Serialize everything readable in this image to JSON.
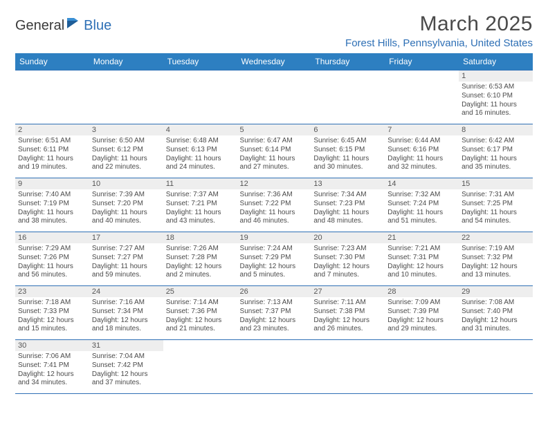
{
  "logo": {
    "text1": "General",
    "text2": "Blue"
  },
  "header": {
    "month_title": "March 2025",
    "location": "Forest Hills, Pennsylvania, United States"
  },
  "colors": {
    "header_bg": "#2d7fc1",
    "accent": "#2d6fb5",
    "day_strip_bg": "#eeeeee",
    "text": "#4a4a4a"
  },
  "weekdays": [
    "Sunday",
    "Monday",
    "Tuesday",
    "Wednesday",
    "Thursday",
    "Friday",
    "Saturday"
  ],
  "weeks": [
    [
      null,
      null,
      null,
      null,
      null,
      null,
      {
        "n": "1",
        "sr": "Sunrise: 6:53 AM",
        "ss": "Sunset: 6:10 PM",
        "dl": "Daylight: 11 hours and 16 minutes."
      }
    ],
    [
      {
        "n": "2",
        "sr": "Sunrise: 6:51 AM",
        "ss": "Sunset: 6:11 PM",
        "dl": "Daylight: 11 hours and 19 minutes."
      },
      {
        "n": "3",
        "sr": "Sunrise: 6:50 AM",
        "ss": "Sunset: 6:12 PM",
        "dl": "Daylight: 11 hours and 22 minutes."
      },
      {
        "n": "4",
        "sr": "Sunrise: 6:48 AM",
        "ss": "Sunset: 6:13 PM",
        "dl": "Daylight: 11 hours and 24 minutes."
      },
      {
        "n": "5",
        "sr": "Sunrise: 6:47 AM",
        "ss": "Sunset: 6:14 PM",
        "dl": "Daylight: 11 hours and 27 minutes."
      },
      {
        "n": "6",
        "sr": "Sunrise: 6:45 AM",
        "ss": "Sunset: 6:15 PM",
        "dl": "Daylight: 11 hours and 30 minutes."
      },
      {
        "n": "7",
        "sr": "Sunrise: 6:44 AM",
        "ss": "Sunset: 6:16 PM",
        "dl": "Daylight: 11 hours and 32 minutes."
      },
      {
        "n": "8",
        "sr": "Sunrise: 6:42 AM",
        "ss": "Sunset: 6:17 PM",
        "dl": "Daylight: 11 hours and 35 minutes."
      }
    ],
    [
      {
        "n": "9",
        "sr": "Sunrise: 7:40 AM",
        "ss": "Sunset: 7:19 PM",
        "dl": "Daylight: 11 hours and 38 minutes."
      },
      {
        "n": "10",
        "sr": "Sunrise: 7:39 AM",
        "ss": "Sunset: 7:20 PM",
        "dl": "Daylight: 11 hours and 40 minutes."
      },
      {
        "n": "11",
        "sr": "Sunrise: 7:37 AM",
        "ss": "Sunset: 7:21 PM",
        "dl": "Daylight: 11 hours and 43 minutes."
      },
      {
        "n": "12",
        "sr": "Sunrise: 7:36 AM",
        "ss": "Sunset: 7:22 PM",
        "dl": "Daylight: 11 hours and 46 minutes."
      },
      {
        "n": "13",
        "sr": "Sunrise: 7:34 AM",
        "ss": "Sunset: 7:23 PM",
        "dl": "Daylight: 11 hours and 48 minutes."
      },
      {
        "n": "14",
        "sr": "Sunrise: 7:32 AM",
        "ss": "Sunset: 7:24 PM",
        "dl": "Daylight: 11 hours and 51 minutes."
      },
      {
        "n": "15",
        "sr": "Sunrise: 7:31 AM",
        "ss": "Sunset: 7:25 PM",
        "dl": "Daylight: 11 hours and 54 minutes."
      }
    ],
    [
      {
        "n": "16",
        "sr": "Sunrise: 7:29 AM",
        "ss": "Sunset: 7:26 PM",
        "dl": "Daylight: 11 hours and 56 minutes."
      },
      {
        "n": "17",
        "sr": "Sunrise: 7:27 AM",
        "ss": "Sunset: 7:27 PM",
        "dl": "Daylight: 11 hours and 59 minutes."
      },
      {
        "n": "18",
        "sr": "Sunrise: 7:26 AM",
        "ss": "Sunset: 7:28 PM",
        "dl": "Daylight: 12 hours and 2 minutes."
      },
      {
        "n": "19",
        "sr": "Sunrise: 7:24 AM",
        "ss": "Sunset: 7:29 PM",
        "dl": "Daylight: 12 hours and 5 minutes."
      },
      {
        "n": "20",
        "sr": "Sunrise: 7:23 AM",
        "ss": "Sunset: 7:30 PM",
        "dl": "Daylight: 12 hours and 7 minutes."
      },
      {
        "n": "21",
        "sr": "Sunrise: 7:21 AM",
        "ss": "Sunset: 7:31 PM",
        "dl": "Daylight: 12 hours and 10 minutes."
      },
      {
        "n": "22",
        "sr": "Sunrise: 7:19 AM",
        "ss": "Sunset: 7:32 PM",
        "dl": "Daylight: 12 hours and 13 minutes."
      }
    ],
    [
      {
        "n": "23",
        "sr": "Sunrise: 7:18 AM",
        "ss": "Sunset: 7:33 PM",
        "dl": "Daylight: 12 hours and 15 minutes."
      },
      {
        "n": "24",
        "sr": "Sunrise: 7:16 AM",
        "ss": "Sunset: 7:34 PM",
        "dl": "Daylight: 12 hours and 18 minutes."
      },
      {
        "n": "25",
        "sr": "Sunrise: 7:14 AM",
        "ss": "Sunset: 7:36 PM",
        "dl": "Daylight: 12 hours and 21 minutes."
      },
      {
        "n": "26",
        "sr": "Sunrise: 7:13 AM",
        "ss": "Sunset: 7:37 PM",
        "dl": "Daylight: 12 hours and 23 minutes."
      },
      {
        "n": "27",
        "sr": "Sunrise: 7:11 AM",
        "ss": "Sunset: 7:38 PM",
        "dl": "Daylight: 12 hours and 26 minutes."
      },
      {
        "n": "28",
        "sr": "Sunrise: 7:09 AM",
        "ss": "Sunset: 7:39 PM",
        "dl": "Daylight: 12 hours and 29 minutes."
      },
      {
        "n": "29",
        "sr": "Sunrise: 7:08 AM",
        "ss": "Sunset: 7:40 PM",
        "dl": "Daylight: 12 hours and 31 minutes."
      }
    ],
    [
      {
        "n": "30",
        "sr": "Sunrise: 7:06 AM",
        "ss": "Sunset: 7:41 PM",
        "dl": "Daylight: 12 hours and 34 minutes."
      },
      {
        "n": "31",
        "sr": "Sunrise: 7:04 AM",
        "ss": "Sunset: 7:42 PM",
        "dl": "Daylight: 12 hours and 37 minutes."
      },
      null,
      null,
      null,
      null,
      null
    ]
  ]
}
